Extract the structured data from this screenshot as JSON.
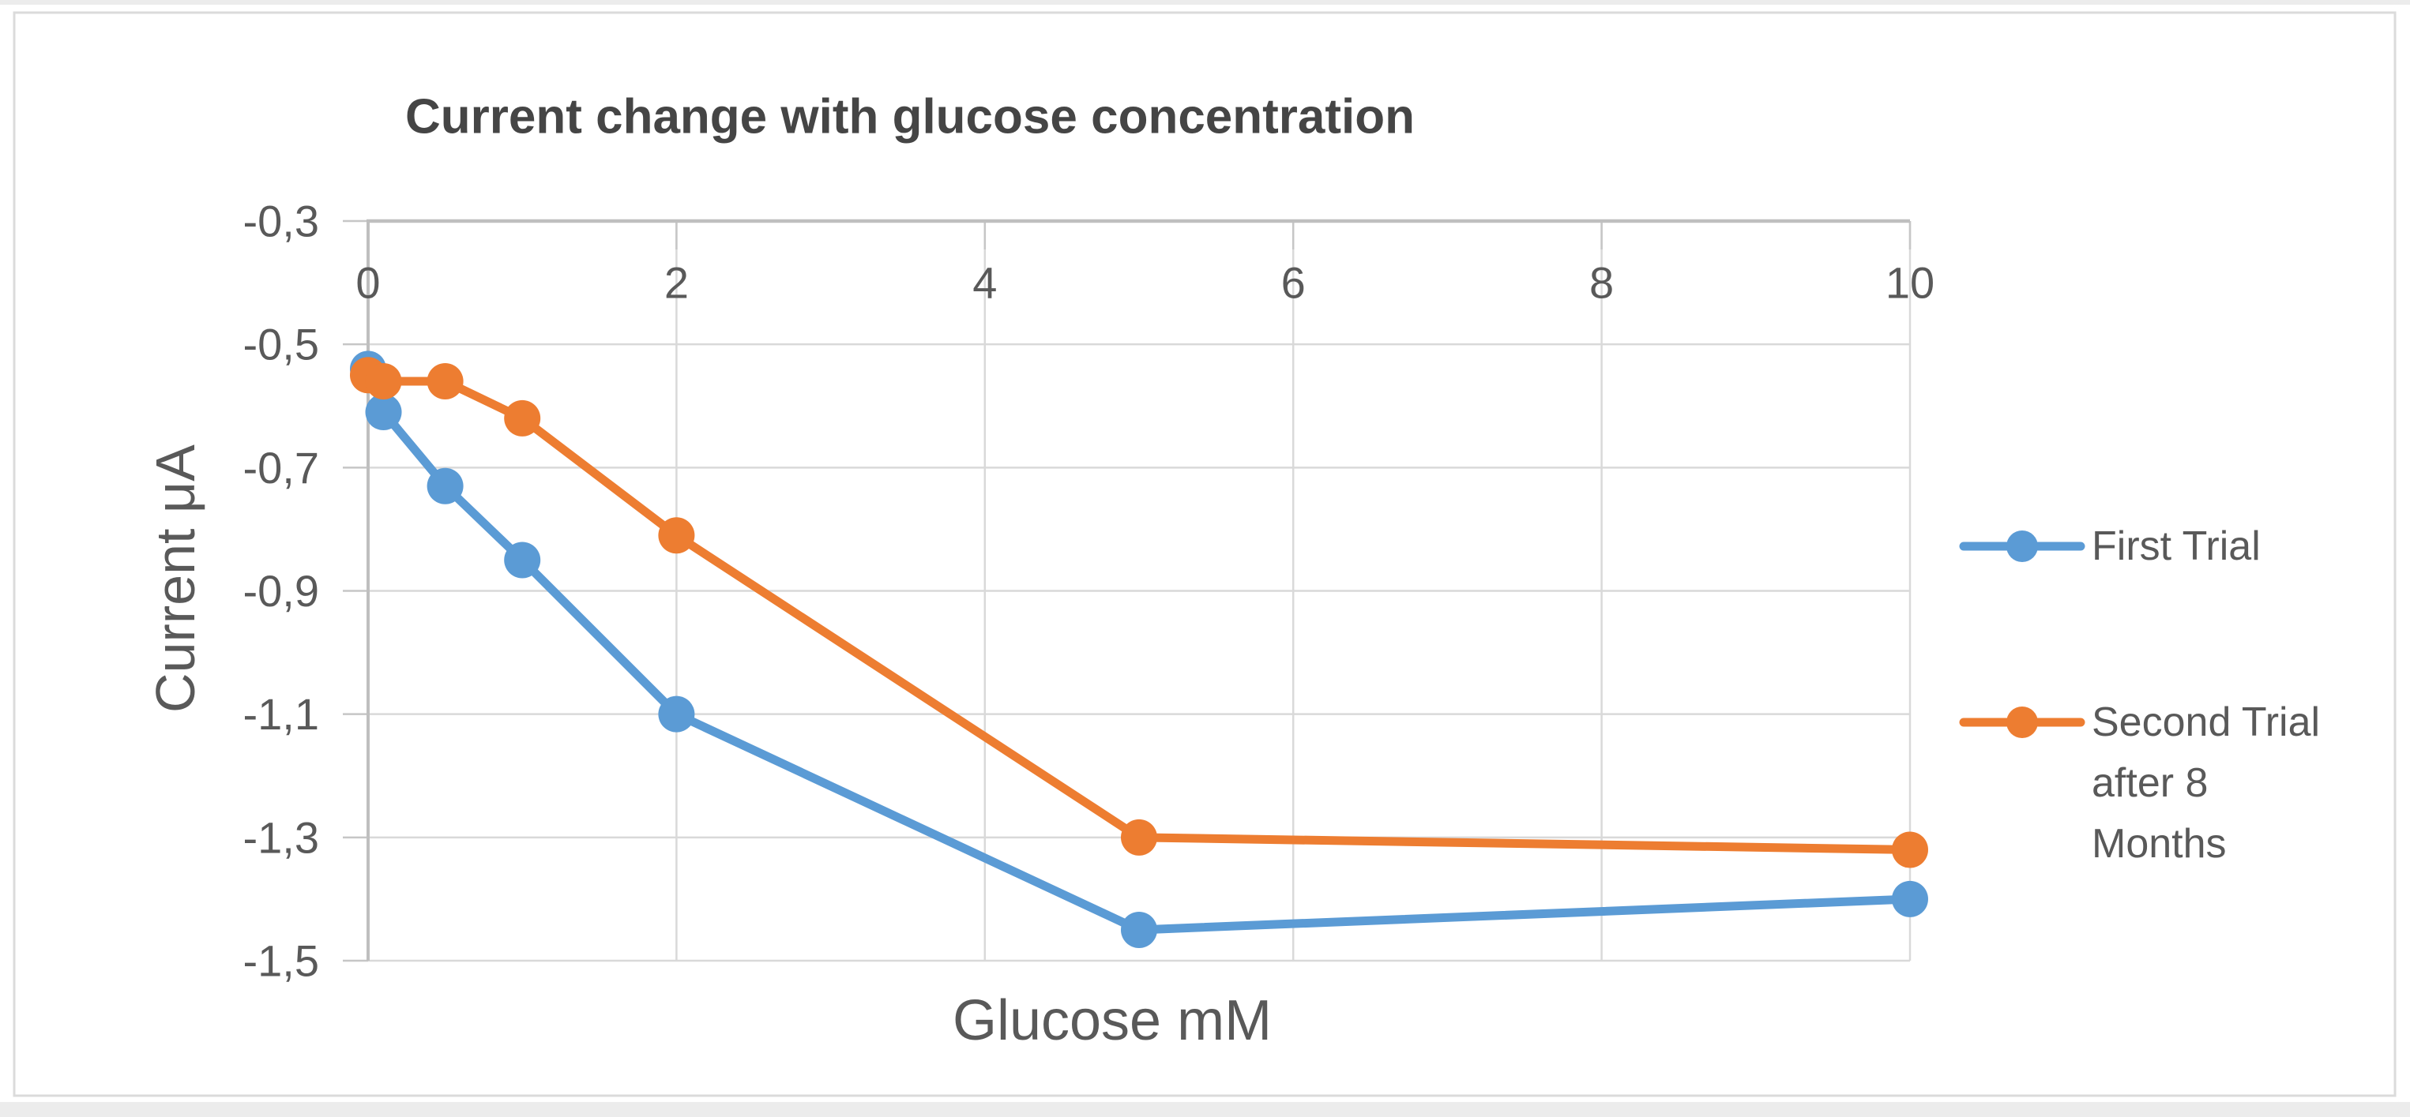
{
  "figure": {
    "background": "#ffffff",
    "border_color": "#dbdbdb",
    "edge_band_color": "#ececec"
  },
  "chart_data": {
    "type": "line",
    "title": "Current change with glucose concentration",
    "xlabel": "Glucose  mM",
    "ylabel": "Current μA",
    "x": [
      0,
      0.1,
      0.5,
      1,
      2,
      5,
      10
    ],
    "series": [
      {
        "name": "First Trial",
        "color": "#5B9BD5",
        "values": [
          -0.54,
          -0.61,
          -0.73,
          -0.85,
          -1.1,
          -1.45,
          -1.4
        ]
      },
      {
        "name": "Second Trial after 8 Months",
        "color": "#ED7D31",
        "values": [
          -0.55,
          -0.56,
          -0.56,
          -0.62,
          -0.81,
          -1.3,
          -1.32
        ]
      }
    ],
    "xlim": [
      0,
      10
    ],
    "ylim": [
      -1.5,
      -0.3
    ],
    "grid": true,
    "legend_position": "right",
    "x_ticks": {
      "values": [
        0,
        2,
        4,
        6,
        8,
        10
      ],
      "labels": [
        "0",
        "2",
        "4",
        "6",
        "8",
        "10"
      ]
    },
    "y_ticks": {
      "values": [
        -0.3,
        -0.5,
        -0.7,
        -0.9,
        -1.1,
        -1.3,
        -1.5
      ],
      "labels": [
        "-0,3",
        "-0,5",
        "-0,7",
        "-0,9",
        "-1,1",
        "-1,3",
        "-1,5"
      ]
    },
    "legend": {
      "entries": [
        {
          "lines": [
            "First Trial"
          ]
        },
        {
          "lines": [
            "Second Trial",
            "after 8",
            "Months"
          ]
        }
      ]
    },
    "colors": {
      "gridline": "#d9d9d9",
      "tick_mark": "#c6c6c6",
      "axis_line": "#bfbfbf",
      "text": "#595959",
      "title_text": "#454545"
    }
  }
}
